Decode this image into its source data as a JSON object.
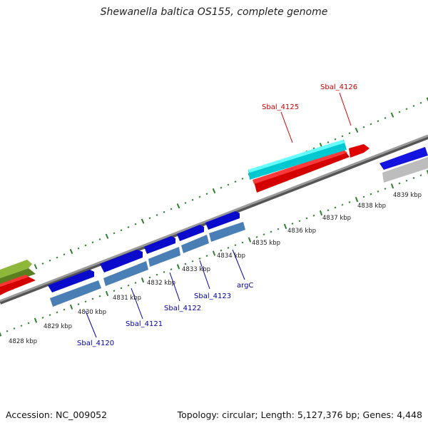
{
  "title": "Shewanella baltica OS155, complete genome",
  "footer": {
    "accession": "Accession: NC_009052",
    "summary": "Topology: circular; Length: 5,127,376 bp; Genes: 4,448"
  },
  "colors": {
    "backbone": "#808080",
    "ticks": "#2f7f2f",
    "label_forward": "#cc0000",
    "label_reverse": "#0000aa"
  },
  "scale": {
    "unit": "kbp",
    "labels": [
      "4828 kbp",
      "4829 kbp",
      "4830 kbp",
      "4831 kbp",
      "4832 kbp",
      "4833 kbp",
      "4834 kbp",
      "4835 kbp",
      "4836 kbp",
      "4837 kbp",
      "4838 kbp",
      "4839 kbp"
    ]
  },
  "gene_labels": [
    {
      "text": "Sbal_4126",
      "color": "#cc0000"
    },
    {
      "text": "Sbal_4125",
      "color": "#cc0000"
    },
    {
      "text": "argC",
      "color": "#0000aa"
    },
    {
      "text": "Sbal_4123",
      "color": "#0000aa"
    },
    {
      "text": "Sbal_4122",
      "color": "#0000aa"
    },
    {
      "text": "Sbal_4121",
      "color": "#0000aa"
    },
    {
      "text": "Sbal_4120",
      "color": "#0000aa"
    }
  ]
}
